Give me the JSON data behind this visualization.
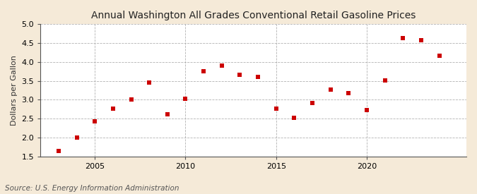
{
  "title": "Annual Washington All Grades Conventional Retail Gasoline Prices",
  "ylabel": "Dollars per Gallon",
  "source": "Source: U.S. Energy Information Administration",
  "fig_background_color": "#f5ead8",
  "plot_background_color": "#ffffff",
  "years": [
    2003,
    2004,
    2005,
    2006,
    2007,
    2008,
    2009,
    2010,
    2011,
    2012,
    2013,
    2014,
    2015,
    2016,
    2017,
    2018,
    2019,
    2020,
    2021,
    2022,
    2023,
    2024
  ],
  "prices": [
    1.65,
    2.0,
    2.43,
    2.76,
    3.0,
    3.45,
    2.62,
    3.03,
    3.76,
    3.91,
    3.67,
    3.6,
    2.76,
    2.53,
    2.91,
    3.26,
    3.17,
    2.72,
    3.52,
    4.64,
    4.57,
    4.17
  ],
  "marker_color": "#cc0000",
  "marker": "s",
  "marker_size": 16,
  "ylim": [
    1.5,
    5.0
  ],
  "yticks": [
    1.5,
    2.0,
    2.5,
    3.0,
    3.5,
    4.0,
    4.5,
    5.0
  ],
  "xticks": [
    2005,
    2010,
    2015,
    2020
  ],
  "xlim_left": 2002.0,
  "xlim_right": 2025.5,
  "grid_color": "#aaaaaa",
  "vline_color": "#aaaaaa",
  "spine_color": "#555555",
  "title_fontsize": 10,
  "label_fontsize": 8,
  "tick_fontsize": 8,
  "source_fontsize": 7.5,
  "title_fontfamily": "sans-serif"
}
